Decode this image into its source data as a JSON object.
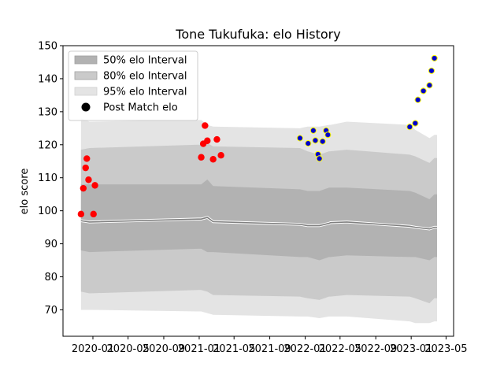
{
  "chart_data": {
    "type": "line",
    "title": "Tone Tukufuka: elo History",
    "xlabel": "",
    "ylabel": "elo score",
    "ylim": [
      62,
      150
    ],
    "xlim": [
      "2019-09-20",
      "2023-05-27"
    ],
    "y_ticks": [
      70,
      80,
      90,
      100,
      110,
      120,
      130,
      140,
      150
    ],
    "x_ticks": [
      "2020-01",
      "2020-05",
      "2020-09",
      "2021-01",
      "2021-05",
      "2021-09",
      "2022-01",
      "2022-05",
      "2022-09",
      "2023-01",
      "2023-05"
    ],
    "grid": false,
    "legend_placement": "top-left",
    "legend": [
      {
        "label": "50% elo Interval",
        "color": "#b2b2b2"
      },
      {
        "label": "80% elo Interval",
        "color": "#cacaca"
      },
      {
        "label": "95% elo Interval",
        "color": "#e4e4e4"
      },
      {
        "label": "Post Match elo",
        "color": "#000000"
      }
    ],
    "bands": {
      "x": [
        "2019-11-21",
        "2019-12-20",
        "2020-12-28",
        "2021-01-08",
        "2021-01-29",
        "2021-02-18",
        "2021-12-14",
        "2022-01-09",
        "2022-02-19",
        "2022-03-24",
        "2022-03-29",
        "2022-05-24",
        "2022-12-27",
        "2023-01-15",
        "2023-03-05",
        "2023-03-22",
        "2023-03-31"
      ],
      "mean": [
        97.0,
        96.6,
        97.5,
        97.5,
        98.0,
        96.7,
        95.9,
        95.5,
        95.5,
        96.2,
        96.4,
        96.6,
        95.3,
        95.0,
        94.5,
        95.0,
        95.0
      ],
      "p50_low": [
        88.0,
        87.5,
        88.5,
        88.5,
        87.5,
        87.5,
        86.0,
        86.0,
        85.0,
        86.0,
        86.0,
        86.5,
        86.0,
        86.0,
        85.0,
        86.0,
        86.0
      ],
      "p50_high": [
        108.0,
        108.0,
        108.0,
        108.0,
        109.5,
        107.5,
        106.5,
        106.0,
        106.0,
        107.0,
        107.0,
        107.0,
        106.0,
        105.5,
        103.5,
        105.0,
        105.0
      ],
      "p80_low": [
        75.5,
        75.0,
        76.0,
        76.0,
        75.5,
        74.5,
        74.0,
        73.5,
        73.0,
        74.0,
        74.0,
        74.5,
        74.0,
        73.5,
        72.0,
        73.5,
        73.5
      ],
      "p80_high": [
        118.5,
        119.0,
        120.0,
        120.0,
        120.5,
        119.5,
        119.0,
        118.0,
        117.0,
        118.0,
        118.0,
        118.5,
        117.0,
        116.5,
        114.5,
        116.0,
        116.0
      ],
      "p95_low": [
        70.0,
        70.0,
        69.5,
        69.5,
        69.0,
        68.5,
        68.0,
        68.0,
        67.5,
        68.0,
        68.0,
        68.0,
        66.5,
        66.0,
        66.0,
        66.5,
        66.5
      ],
      "p95_high": [
        128.0,
        127.0,
        127.5,
        127.5,
        126.0,
        125.5,
        125.0,
        125.5,
        125.5,
        126.0,
        126.0,
        127.0,
        126.0,
        124.5,
        122.0,
        123.0,
        123.0
      ]
    },
    "series": [
      {
        "name": "Post Match elo",
        "marker_fill": "#ff0000",
        "marker_edge": "#ff0000",
        "points": [
          {
            "x": "2019-11-21",
            "y": 99.0
          },
          {
            "x": "2019-11-29",
            "y": 106.8
          },
          {
            "x": "2019-12-07",
            "y": 113.0
          },
          {
            "x": "2019-12-11",
            "y": 115.8
          },
          {
            "x": "2019-12-17",
            "y": 109.4
          },
          {
            "x": "2020-01-03",
            "y": 99.0
          },
          {
            "x": "2020-01-08",
            "y": 107.7
          },
          {
            "x": "2021-01-08",
            "y": 116.2
          },
          {
            "x": "2021-01-15",
            "y": 120.3
          },
          {
            "x": "2021-01-21",
            "y": 125.8
          },
          {
            "x": "2021-01-29",
            "y": 121.2
          },
          {
            "x": "2021-02-18",
            "y": 115.6
          },
          {
            "x": "2021-03-03",
            "y": 121.6
          },
          {
            "x": "2021-03-17",
            "y": 116.8
          }
        ]
      },
      {
        "name": "",
        "marker_fill": "#0000cc",
        "marker_edge": "#ffff00",
        "points": [
          {
            "x": "2021-12-14",
            "y": 122.0
          },
          {
            "x": "2022-01-11",
            "y": 120.4
          },
          {
            "x": "2022-01-29",
            "y": 124.3
          },
          {
            "x": "2022-02-05",
            "y": 121.3
          },
          {
            "x": "2022-02-14",
            "y": 117.1
          },
          {
            "x": "2022-02-19",
            "y": 115.8
          },
          {
            "x": "2022-03-02",
            "y": 121.0
          },
          {
            "x": "2022-03-14",
            "y": 124.3
          },
          {
            "x": "2022-03-20",
            "y": 123.0
          },
          {
            "x": "2022-12-27",
            "y": 125.4
          },
          {
            "x": "2023-01-15",
            "y": 126.5
          },
          {
            "x": "2023-01-24",
            "y": 133.6
          },
          {
            "x": "2023-02-12",
            "y": 136.3
          },
          {
            "x": "2023-03-05",
            "y": 138.0
          },
          {
            "x": "2023-03-12",
            "y": 142.4
          },
          {
            "x": "2023-03-22",
            "y": 146.2
          }
        ]
      }
    ]
  }
}
